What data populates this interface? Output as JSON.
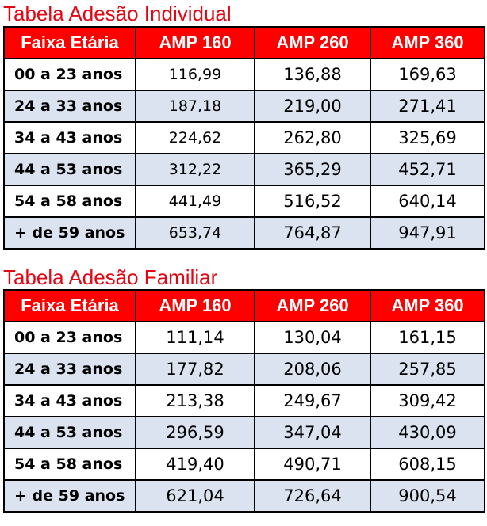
{
  "individual": {
    "title": "Tabela Adesão Individual",
    "headers": [
      "Faixa Etária",
      "AMP 160",
      "AMP 260",
      "AMP 360"
    ],
    "rows": [
      [
        "00 a 23 anos",
        "116,99",
        "136,88",
        "169,63"
      ],
      [
        "24 a 33 anos",
        "187,18",
        "219,00",
        "271,41"
      ],
      [
        "34 a 43 anos",
        "224,62",
        "262,80",
        "325,69"
      ],
      [
        "44 a 53 anos",
        "312,22",
        "365,29",
        "452,71"
      ],
      [
        "54 a 58 anos",
        "441,49",
        "516,52",
        "640,14"
      ],
      [
        "+ de 59 anos",
        "653,74",
        "764,87",
        "947,91"
      ]
    ]
  },
  "familiar": {
    "title": "Tabela Adesão Familiar",
    "headers": [
      "Faixa Etária",
      "AMP 160",
      "AMP 260",
      "AMP 360"
    ],
    "rows": [
      [
        "00 a 23 anos",
        "111,14",
        "130,04",
        "161,15"
      ],
      [
        "24 a 33 anos",
        "177,82",
        "208,06",
        "257,85"
      ],
      [
        "34 a 43 anos",
        "213,38",
        "249,67",
        "309,42"
      ],
      [
        "44 a 53 anos",
        "296,59",
        "347,04",
        "430,09"
      ],
      [
        "54 a 58 anos",
        "419,40",
        "490,71",
        "608,15"
      ],
      [
        "+ de 59 anos",
        "621,04",
        "726,64",
        "900,54"
      ]
    ]
  },
  "colors": {
    "title_red": "#e30613",
    "header_red": "#ff0000",
    "shaded_row": "#dce3f0"
  }
}
